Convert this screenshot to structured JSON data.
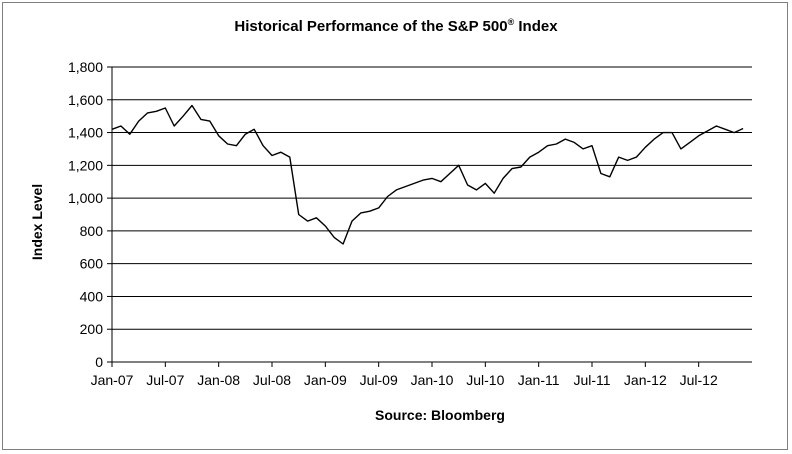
{
  "chart_data": {
    "type": "line",
    "title": "Historical Performance of the S&P 500",
    "title_superscript": "®",
    "title_suffix": " Index",
    "ylabel": "Index Level",
    "xlabel": "Source: Bloomberg",
    "ylim": [
      0,
      1800
    ],
    "y_ticks": [
      0,
      200,
      400,
      600,
      800,
      1000,
      1200,
      1400,
      1600,
      1800
    ],
    "y_tick_labels": [
      "0",
      "200",
      "400",
      "600",
      "800",
      "1,000",
      "1,200",
      "1,400",
      "1,600",
      "1,800"
    ],
    "x_range": [
      "2007-01",
      "2012-12"
    ],
    "x_tick_labels": [
      "Jan-07",
      "Jul-07",
      "Jan-08",
      "Jul-08",
      "Jan-09",
      "Jul-09",
      "Jan-10",
      "Jul-10",
      "Jan-11",
      "Jul-11",
      "Jan-12",
      "Jul-12"
    ],
    "grid": true,
    "line_color": "#000000",
    "series": [
      {
        "x": [
          "2007-01",
          "2007-02",
          "2007-03",
          "2007-04",
          "2007-05",
          "2007-06",
          "2007-07",
          "2007-08",
          "2007-09",
          "2007-10",
          "2007-11",
          "2007-12",
          "2008-01",
          "2008-02",
          "2008-03",
          "2008-04",
          "2008-05",
          "2008-06",
          "2008-07",
          "2008-08",
          "2008-09",
          "2008-10",
          "2008-11",
          "2008-12",
          "2009-01",
          "2009-02",
          "2009-03",
          "2009-04",
          "2009-05",
          "2009-06",
          "2009-07",
          "2009-08",
          "2009-09",
          "2009-10",
          "2009-11",
          "2009-12",
          "2010-01",
          "2010-02",
          "2010-03",
          "2010-04",
          "2010-05",
          "2010-06",
          "2010-07",
          "2010-08",
          "2010-09",
          "2010-10",
          "2010-11",
          "2010-12",
          "2011-01",
          "2011-02",
          "2011-03",
          "2011-04",
          "2011-05",
          "2011-06",
          "2011-07",
          "2011-08",
          "2011-09",
          "2011-10",
          "2011-11",
          "2011-12",
          "2012-01",
          "2012-02",
          "2012-03",
          "2012-04",
          "2012-05",
          "2012-06",
          "2012-07",
          "2012-08",
          "2012-09",
          "2012-10",
          "2012-11",
          "2012-12"
        ],
        "values": [
          1420,
          1440,
          1390,
          1470,
          1520,
          1530,
          1550,
          1440,
          1500,
          1565,
          1480,
          1470,
          1380,
          1330,
          1320,
          1390,
          1420,
          1320,
          1260,
          1280,
          1250,
          900,
          860,
          880,
          830,
          760,
          720,
          860,
          910,
          920,
          940,
          1010,
          1050,
          1070,
          1090,
          1110,
          1120,
          1100,
          1150,
          1200,
          1080,
          1050,
          1090,
          1030,
          1120,
          1180,
          1190,
          1250,
          1280,
          1320,
          1330,
          1360,
          1340,
          1300,
          1320,
          1150,
          1130,
          1250,
          1230,
          1250,
          1310,
          1360,
          1400,
          1400,
          1300,
          1340,
          1380,
          1410,
          1440,
          1420,
          1400,
          1425
        ]
      }
    ]
  }
}
